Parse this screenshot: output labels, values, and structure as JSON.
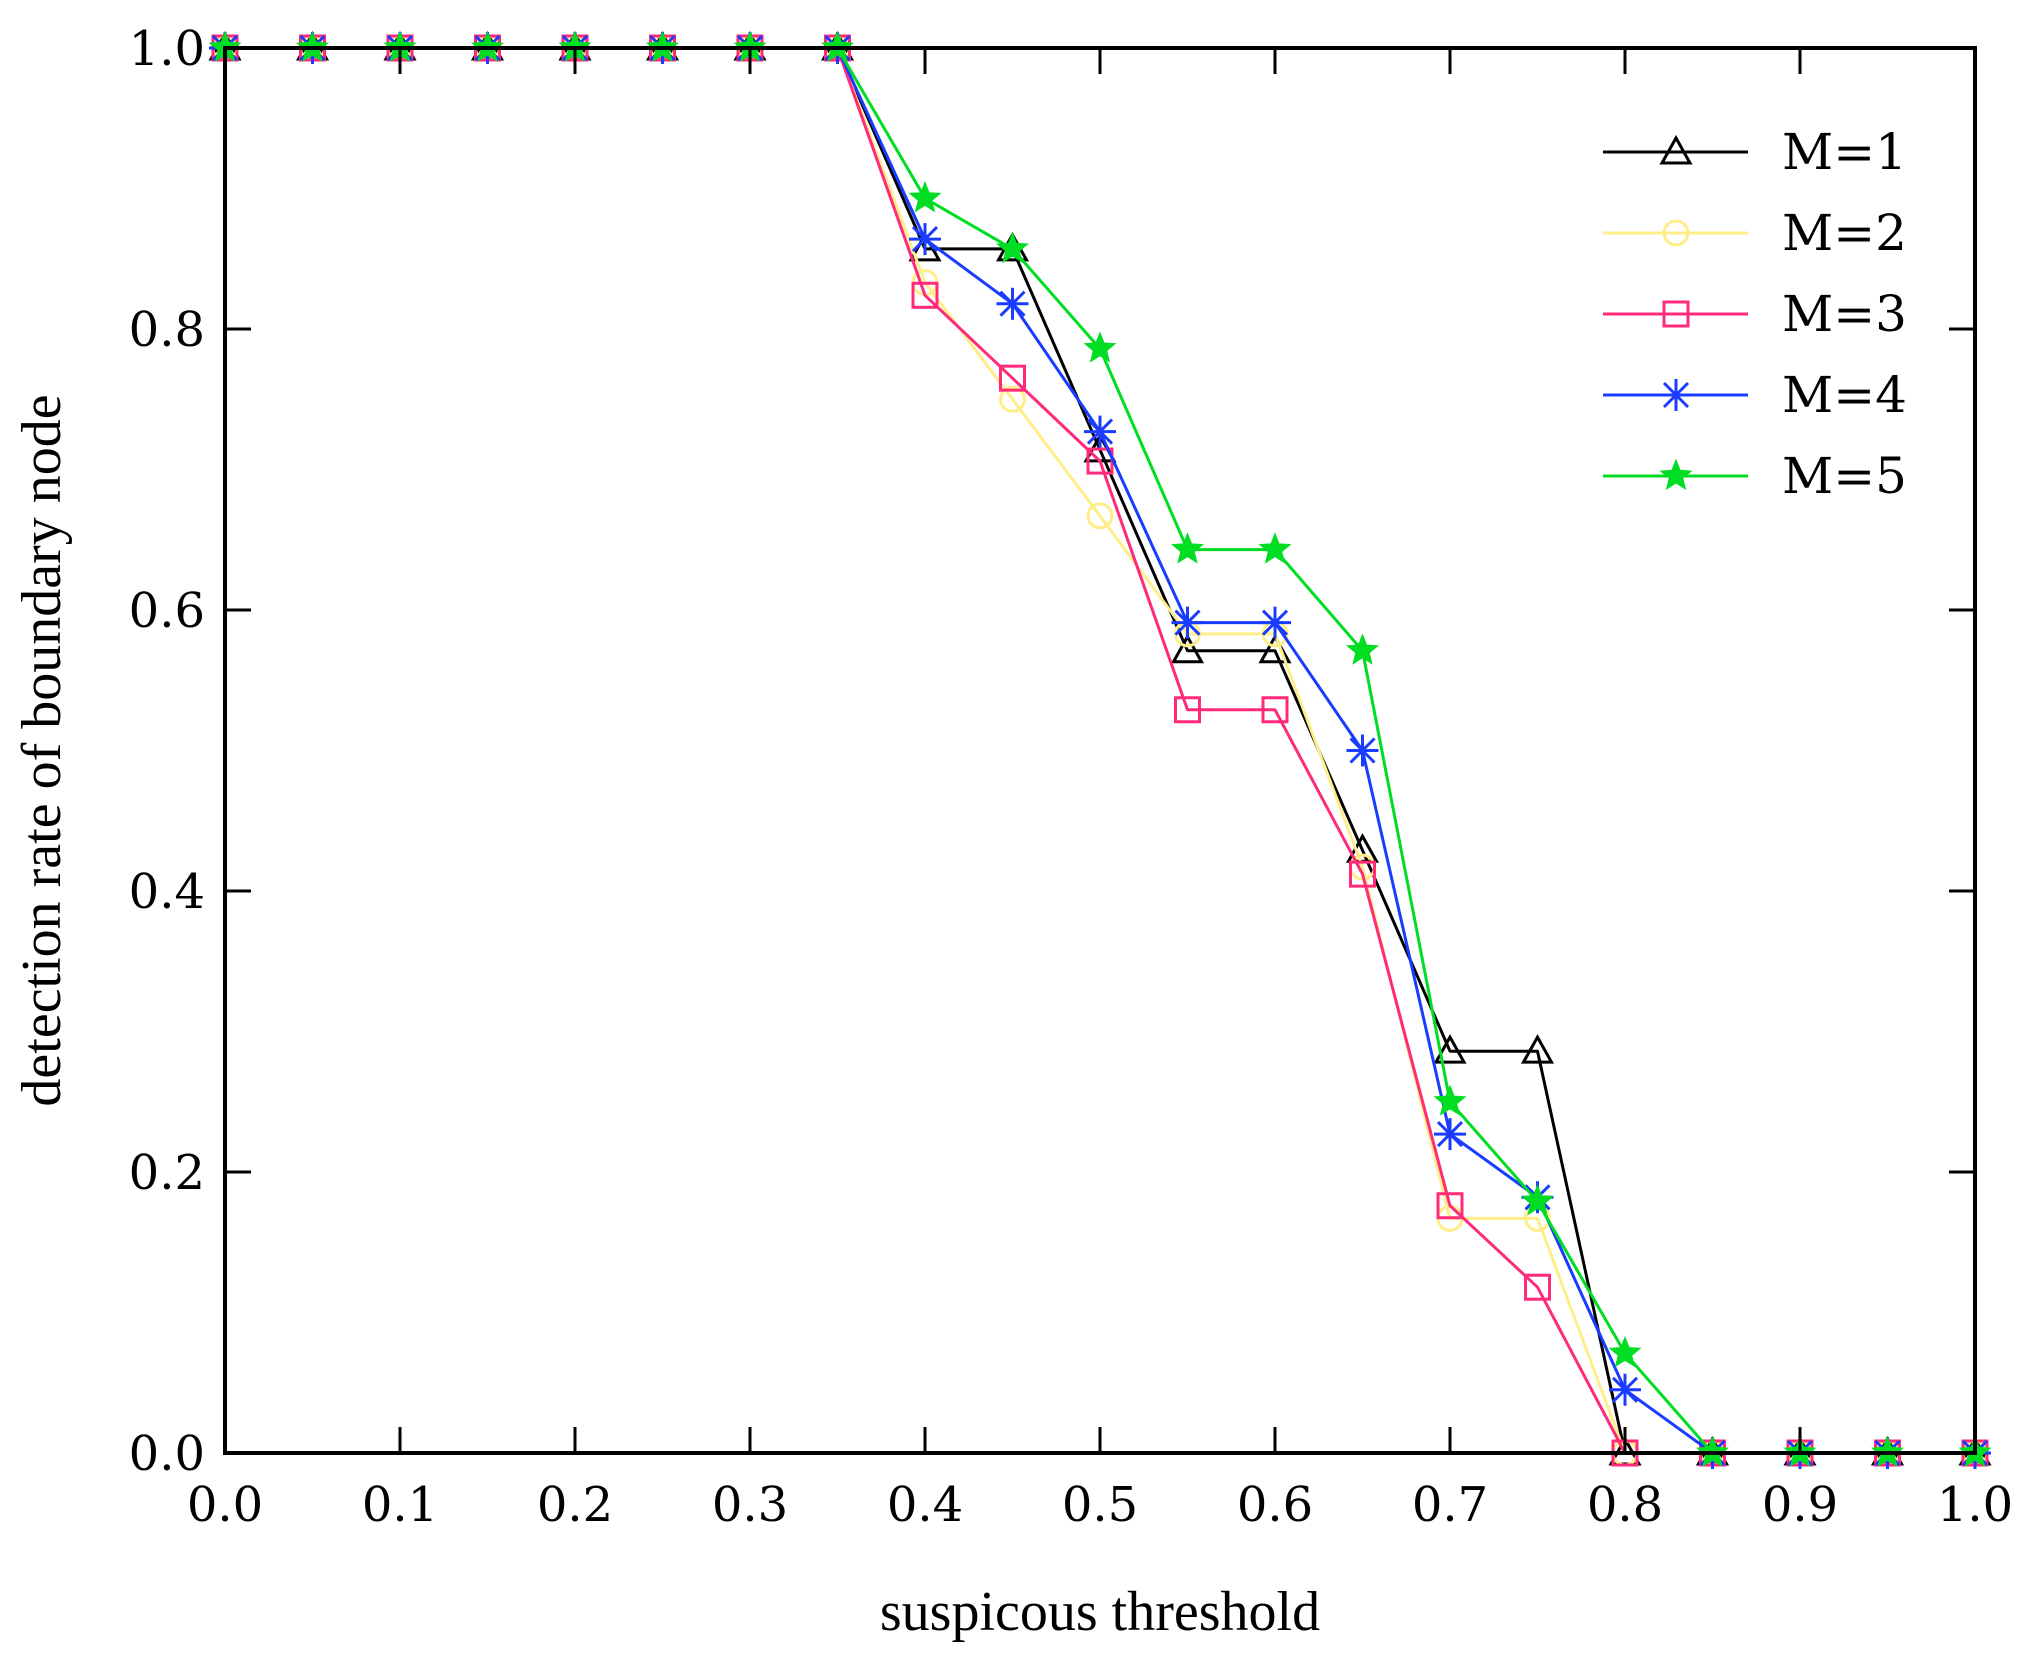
{
  "chart_data": {
    "type": "line",
    "title": "",
    "xlabel": "suspicous threshold",
    "ylabel": "detection rate of boundary node",
    "xlim": [
      0.0,
      1.0
    ],
    "ylim": [
      0.0,
      1.0
    ],
    "grid": false,
    "legend_position": "top-right",
    "x_ticks": [
      "0.0",
      "0.1",
      "0.2",
      "0.3",
      "0.4",
      "0.5",
      "0.6",
      "0.7",
      "0.8",
      "0.9",
      "1.0"
    ],
    "y_ticks": [
      "0.0",
      "0.2",
      "0.4",
      "0.6",
      "0.8",
      "1.0"
    ],
    "x": [
      0.0,
      0.05,
      0.1,
      0.15,
      0.2,
      0.25,
      0.3,
      0.35,
      0.4,
      0.45,
      0.5,
      0.55,
      0.6,
      0.65,
      0.7,
      0.75,
      0.8,
      0.85,
      0.9,
      0.95,
      1.0
    ],
    "series": [
      {
        "name": "M=1",
        "color": "#000000",
        "marker": "triangle",
        "values": [
          1.0,
          1.0,
          1.0,
          1.0,
          1.0,
          1.0,
          1.0,
          1.0,
          0.857,
          0.857,
          0.714,
          0.571,
          0.571,
          0.429,
          0.286,
          0.286,
          0.0,
          0.0,
          0.0,
          0.0,
          0.0
        ]
      },
      {
        "name": "M=2",
        "color": "#ffee88",
        "marker": "circle",
        "values": [
          1.0,
          1.0,
          1.0,
          1.0,
          1.0,
          1.0,
          1.0,
          1.0,
          0.833,
          0.75,
          0.667,
          0.583,
          0.583,
          0.417,
          0.167,
          0.167,
          0.0,
          0.0,
          0.0,
          0.0,
          0.0
        ]
      },
      {
        "name": "M=3",
        "color": "#ff2b7a",
        "marker": "square",
        "values": [
          1.0,
          1.0,
          1.0,
          1.0,
          1.0,
          1.0,
          1.0,
          1.0,
          0.824,
          0.765,
          0.706,
          0.529,
          0.529,
          0.412,
          0.176,
          0.118,
          0.0,
          0.0,
          0.0,
          0.0,
          0.0
        ]
      },
      {
        "name": "M=4",
        "color": "#1a3cff",
        "marker": "asterisk",
        "values": [
          1.0,
          1.0,
          1.0,
          1.0,
          1.0,
          1.0,
          1.0,
          1.0,
          0.864,
          0.818,
          0.727,
          0.591,
          0.591,
          0.5,
          0.227,
          0.182,
          0.045,
          0.0,
          0.0,
          0.0,
          0.0
        ]
      },
      {
        "name": "M=5",
        "color": "#00dd22",
        "marker": "star",
        "values": [
          1.0,
          1.0,
          1.0,
          1.0,
          1.0,
          1.0,
          1.0,
          1.0,
          0.893,
          0.857,
          0.786,
          0.643,
          0.643,
          0.571,
          0.25,
          0.179,
          0.071,
          0.0,
          0.0,
          0.0,
          0.0
        ]
      }
    ]
  }
}
